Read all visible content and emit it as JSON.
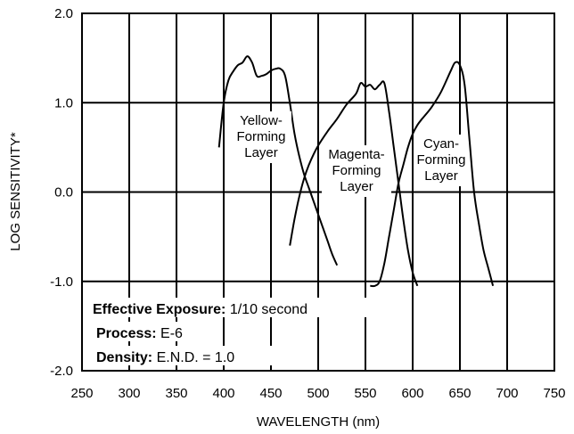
{
  "chart_data": {
    "type": "line",
    "title": "",
    "xlabel": "WAVELENGTH (nm)",
    "ylabel": "LOG SENSITIVITY*",
    "xlim": [
      250,
      750
    ],
    "ylim": [
      -2.0,
      2.0
    ],
    "xticks": [
      "250",
      "300",
      "350",
      "400",
      "450",
      "500",
      "550",
      "600",
      "650",
      "700",
      "750"
    ],
    "yticks": [
      "2.0",
      "1.0",
      "0.0",
      "-1.0",
      "-2.0"
    ],
    "grid": true,
    "series": [
      {
        "name": "Yellow-Forming Layer",
        "label_lines": [
          "Yellow-",
          "Forming",
          "Layer"
        ],
        "x": [
          395,
          400,
          405,
          410,
          415,
          420,
          425,
          430,
          435,
          440,
          445,
          450,
          455,
          460,
          465,
          470,
          475,
          480,
          485,
          490,
          495,
          500,
          505,
          510,
          515,
          520
        ],
        "y": [
          0.5,
          1.0,
          1.25,
          1.35,
          1.42,
          1.45,
          1.52,
          1.45,
          1.3,
          1.3,
          1.32,
          1.36,
          1.38,
          1.38,
          1.3,
          1.0,
          0.65,
          0.4,
          0.2,
          0.05,
          -0.1,
          -0.25,
          -0.4,
          -0.55,
          -0.7,
          -0.82
        ]
      },
      {
        "name": "Magenta-Forming Layer",
        "label_lines": [
          "Magenta-",
          "Forming",
          "Layer"
        ],
        "x": [
          470,
          475,
          480,
          485,
          490,
          495,
          500,
          510,
          520,
          530,
          540,
          545,
          550,
          555,
          560,
          565,
          570,
          575,
          580,
          585,
          590,
          595,
          600,
          605
        ],
        "y": [
          -0.6,
          -0.3,
          -0.05,
          0.15,
          0.3,
          0.42,
          0.52,
          0.68,
          0.82,
          0.98,
          1.1,
          1.22,
          1.18,
          1.2,
          1.15,
          1.2,
          1.22,
          0.9,
          0.5,
          0.1,
          -0.3,
          -0.65,
          -0.9,
          -1.05
        ]
      },
      {
        "name": "Cyan-Forming Layer",
        "label_lines": [
          "Cyan-",
          "Forming",
          "Layer"
        ],
        "x": [
          555,
          560,
          565,
          570,
          575,
          580,
          585,
          590,
          595,
          600,
          605,
          610,
          620,
          630,
          640,
          645,
          650,
          655,
          660,
          665,
          670,
          675,
          680,
          685
        ],
        "y": [
          -1.05,
          -1.05,
          -1.0,
          -0.8,
          -0.5,
          -0.2,
          0.1,
          0.3,
          0.5,
          0.65,
          0.75,
          0.82,
          0.95,
          1.12,
          1.35,
          1.45,
          1.42,
          1.2,
          0.6,
          0.0,
          -0.35,
          -0.65,
          -0.85,
          -1.05
        ]
      }
    ],
    "annotations": [
      {
        "key": "Effective Exposure:",
        "value": " 1/10 second"
      },
      {
        "key": "Process:",
        "value": " E-6"
      },
      {
        "key": "Density:",
        "value": " E.N.D. = 1.0"
      }
    ]
  }
}
